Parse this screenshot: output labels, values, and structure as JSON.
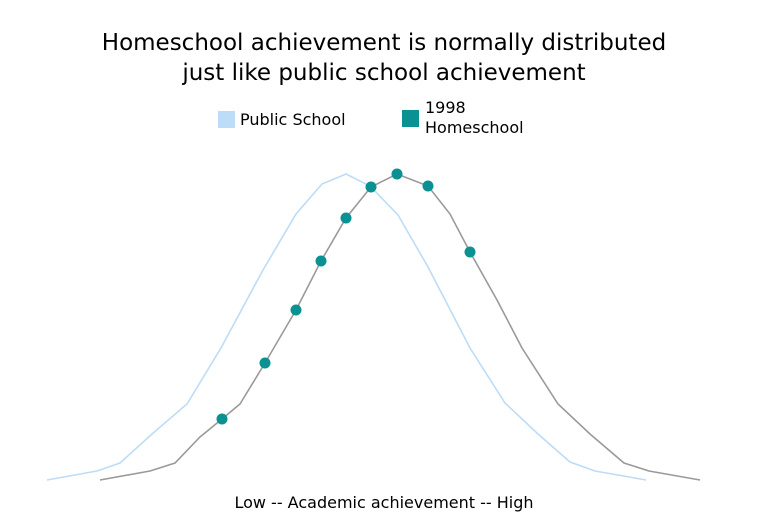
{
  "chart_data": {
    "type": "line",
    "title": "Homeschool achievement is normally distributed\njust like public school achievement",
    "xlabel": "Low  --  Academic achievement  --  High",
    "xlim": [
      0,
      660
    ],
    "ylim": [
      0,
      310
    ],
    "series": [
      {
        "name": "Public School",
        "color": "#bddcf7",
        "x": [
          2,
          52,
          75,
          107,
          142,
          176,
          218,
          251,
          277,
          301,
          325,
          353,
          383,
          425,
          460,
          493,
          525,
          550,
          601
        ],
        "values": [
          0,
          9,
          17,
          46,
          76,
          132,
          210,
          266,
          296,
          306,
          294,
          265,
          213,
          132,
          77,
          46,
          18,
          9,
          0
        ]
      },
      {
        "name": "1998\nHomeschool",
        "color": "#0b9191",
        "line_color": "#9a9a9a",
        "x": [
          55,
          105,
          130,
          155,
          177,
          195,
          220,
          251,
          276,
          301,
          326,
          352,
          383,
          405,
          425,
          452,
          477,
          513,
          545,
          579,
          604,
          655
        ],
        "values": [
          0,
          9,
          17,
          43,
          61,
          76,
          117,
          170,
          219,
          262,
          293,
          306,
          294,
          266,
          228,
          180,
          132,
          76,
          46,
          17,
          9,
          0
        ],
        "markers": [
          false,
          false,
          false,
          false,
          true,
          false,
          true,
          true,
          true,
          true,
          true,
          true,
          true,
          false,
          true,
          false,
          false,
          false,
          false,
          false,
          false,
          false
        ]
      }
    ]
  }
}
